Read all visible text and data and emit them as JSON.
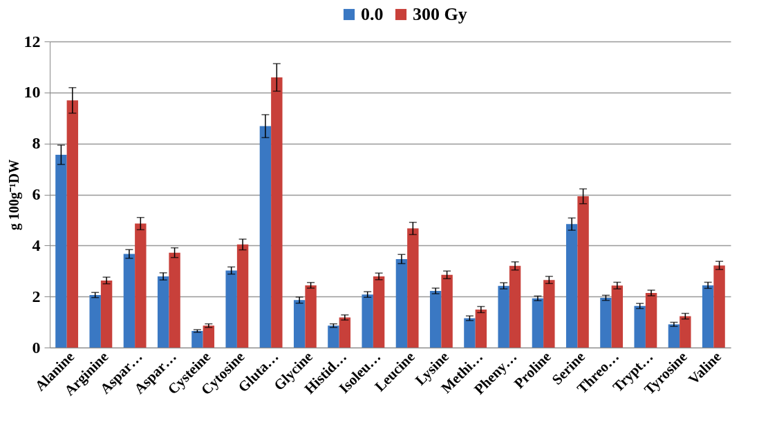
{
  "chart_data": {
    "type": "bar",
    "ylabel": "g 100g⁻¹DW",
    "categories": [
      "Alanine",
      "Arginine",
      "Aspar…",
      "Aspar…",
      "Cysteine",
      "Cytosine",
      "Gluta…",
      "Glycine",
      "Histid…",
      "Isoleu…",
      "Leucine",
      "Lysine",
      "Methi…",
      "Pheny…",
      "Proline",
      "Serine",
      "Threo…",
      "Trypt…",
      "Tyrosine",
      "Valine"
    ],
    "series": [
      {
        "name": "0.0",
        "color": "#3a78c3",
        "values": [
          7.56,
          2.06,
          3.67,
          2.79,
          0.65,
          3.02,
          8.68,
          1.86,
          0.86,
          2.08,
          3.47,
          2.22,
          1.15,
          2.42,
          1.93,
          4.84,
          1.95,
          1.63,
          0.91,
          2.44
        ],
        "errors": [
          0.38,
          0.1,
          0.17,
          0.14,
          0.05,
          0.14,
          0.45,
          0.12,
          0.07,
          0.11,
          0.18,
          0.11,
          0.09,
          0.12,
          0.09,
          0.24,
          0.1,
          0.1,
          0.08,
          0.12
        ]
      },
      {
        "name": "300 Gy",
        "color": "#c8403a",
        "values": [
          9.69,
          2.63,
          4.86,
          3.72,
          0.86,
          4.04,
          10.59,
          2.44,
          1.18,
          2.79,
          4.67,
          2.85,
          1.49,
          3.2,
          2.65,
          5.93,
          2.43,
          2.14,
          1.23,
          3.22
        ],
        "errors": [
          0.5,
          0.13,
          0.24,
          0.19,
          0.07,
          0.21,
          0.54,
          0.11,
          0.1,
          0.13,
          0.24,
          0.15,
          0.12,
          0.16,
          0.14,
          0.29,
          0.13,
          0.11,
          0.11,
          0.16
        ]
      }
    ],
    "ylim": [
      0,
      12
    ],
    "yticks": [
      0,
      2,
      4,
      6,
      8,
      10,
      12
    ],
    "grid": "y",
    "legend": "top"
  }
}
